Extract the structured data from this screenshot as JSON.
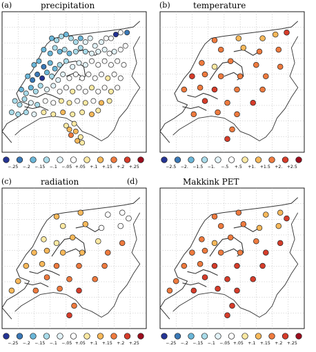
{
  "panels": [
    {
      "tag": "(a)",
      "title": "precipitation",
      "legend_ticks": [
        "−.25",
        "−.2",
        "−.15",
        "−.1",
        "−.05",
        "+.05",
        "+.1",
        "+.15",
        "+.2",
        "+.25"
      ]
    },
    {
      "tag": "(b)",
      "title": "temperature",
      "legend_ticks": [
        "−2.5",
        "−2.",
        "−1.5",
        "−1.",
        "−.5",
        "+.5",
        "+1.",
        "+1.5",
        "+2.",
        "+2.5"
      ]
    },
    {
      "tag": "(c)",
      "title": "radiation",
      "legend_ticks": [
        "−.25",
        "−.2",
        "−.15",
        "−.1",
        "−.05",
        "+.05",
        "+.1",
        "+.15",
        "+.2",
        "+.25"
      ]
    },
    {
      "tag": "(d)",
      "title": "Makkink PET",
      "legend_ticks": [
        "−.25",
        "−.2",
        "−.15",
        "−.1",
        "−.05",
        "+.05",
        "+.1",
        "+.15",
        "+.2",
        "+.25"
      ]
    }
  ],
  "colors": {
    "scale": [
      "#253494",
      "#3a78b6",
      "#6ab6d8",
      "#a9dbe9",
      "#e2f2f7",
      "#ffffff",
      "#fce9a3",
      "#f7b85a",
      "#ee7a3e",
      "#d63c2a",
      "#9c0d1d"
    ],
    "grid": "#bdbdbd",
    "coast": "#333333"
  },
  "chart_data": [
    {
      "type": "scatter",
      "title": "precipitation",
      "legend": "bottom",
      "grid": true,
      "category_scale": [
        "−.25",
        "−.2",
        "−.15",
        "−.1",
        "−.05",
        "+.05",
        "+.1",
        "+.15",
        "+.2",
        "+.25"
      ],
      "stations": [
        [
          3.55,
          53.3,
          2
        ],
        [
          3.7,
          53.25,
          3
        ],
        [
          3.85,
          53.35,
          3
        ],
        [
          4.0,
          53.4,
          2
        ],
        [
          4.15,
          53.3,
          3
        ],
        [
          4.3,
          53.2,
          3
        ],
        [
          4.45,
          53.3,
          2
        ],
        [
          4.6,
          53.2,
          4
        ],
        [
          4.75,
          53.3,
          4
        ],
        [
          4.9,
          53.1,
          4
        ],
        [
          5.1,
          53.2,
          4
        ],
        [
          5.25,
          53.3,
          5
        ],
        [
          5.4,
          53.3,
          5
        ],
        [
          5.55,
          53.4,
          0
        ],
        [
          5.7,
          53.45,
          5
        ],
        [
          5.9,
          53.45,
          1
        ],
        [
          3.3,
          53.0,
          2
        ],
        [
          3.5,
          52.9,
          2
        ],
        [
          3.65,
          53.05,
          3
        ],
        [
          3.8,
          52.95,
          2
        ],
        [
          3.95,
          53.0,
          3
        ],
        [
          4.1,
          52.9,
          2
        ],
        [
          4.3,
          52.95,
          3
        ],
        [
          4.45,
          53.05,
          3
        ],
        [
          4.6,
          52.95,
          3
        ],
        [
          4.8,
          52.9,
          4
        ],
        [
          5.0,
          52.95,
          4
        ],
        [
          5.2,
          53.0,
          4
        ],
        [
          5.35,
          52.9,
          5
        ],
        [
          5.5,
          52.95,
          4
        ],
        [
          5.7,
          53.0,
          5
        ],
        [
          5.85,
          53.1,
          5
        ],
        [
          3.0,
          52.6,
          2
        ],
        [
          3.15,
          52.7,
          2
        ],
        [
          3.3,
          52.55,
          1
        ],
        [
          3.5,
          52.65,
          2
        ],
        [
          3.65,
          52.5,
          2
        ],
        [
          3.8,
          52.6,
          3
        ],
        [
          4.0,
          52.7,
          3
        ],
        [
          4.2,
          52.55,
          4
        ],
        [
          4.4,
          52.65,
          4
        ],
        [
          4.6,
          52.6,
          4
        ],
        [
          4.8,
          52.7,
          5
        ],
        [
          5.0,
          52.6,
          5
        ],
        [
          5.2,
          52.7,
          5
        ],
        [
          5.4,
          52.6,
          5
        ],
        [
          5.6,
          52.7,
          5
        ],
        [
          5.8,
          52.6,
          5
        ],
        [
          2.8,
          52.3,
          2
        ],
        [
          2.95,
          52.2,
          1
        ],
        [
          3.1,
          52.35,
          1
        ],
        [
          3.25,
          52.25,
          0
        ],
        [
          3.4,
          52.4,
          2
        ],
        [
          3.55,
          52.3,
          3
        ],
        [
          3.75,
          52.2,
          4
        ],
        [
          3.9,
          52.35,
          4
        ],
        [
          4.1,
          52.25,
          5
        ],
        [
          4.3,
          52.35,
          5
        ],
        [
          4.5,
          52.25,
          5
        ],
        [
          4.7,
          52.35,
          5
        ],
        [
          4.9,
          52.25,
          5
        ],
        [
          5.1,
          52.35,
          5
        ],
        [
          5.3,
          52.25,
          6
        ],
        [
          5.5,
          52.35,
          5
        ],
        [
          5.7,
          52.25,
          5
        ],
        [
          2.6,
          51.95,
          2
        ],
        [
          2.75,
          51.85,
          3
        ],
        [
          2.9,
          52.0,
          2
        ],
        [
          3.05,
          51.9,
          3
        ],
        [
          3.2,
          52.05,
          3
        ],
        [
          3.4,
          51.95,
          4
        ],
        [
          3.6,
          52.05,
          4
        ],
        [
          3.8,
          51.9,
          5
        ],
        [
          4.0,
          52.0,
          5
        ],
        [
          4.2,
          51.9,
          6
        ],
        [
          4.4,
          52.0,
          5
        ],
        [
          4.6,
          51.9,
          5
        ],
        [
          4.8,
          52.0,
          6
        ],
        [
          5.0,
          51.9,
          5
        ],
        [
          5.2,
          52.0,
          5
        ],
        [
          5.4,
          51.9,
          6
        ],
        [
          5.6,
          52.0,
          5
        ],
        [
          2.4,
          51.65,
          3
        ],
        [
          2.55,
          51.55,
          3
        ],
        [
          2.7,
          51.7,
          3
        ],
        [
          2.9,
          51.6,
          4
        ],
        [
          3.1,
          51.55,
          3
        ],
        [
          3.35,
          51.65,
          5
        ],
        [
          3.6,
          51.6,
          5
        ],
        [
          3.85,
          51.65,
          6
        ],
        [
          4.1,
          51.6,
          6
        ],
        [
          4.35,
          51.65,
          5
        ],
        [
          4.6,
          51.6,
          6
        ],
        [
          4.85,
          51.65,
          5
        ],
        [
          5.1,
          51.6,
          7
        ],
        [
          5.35,
          51.65,
          6
        ],
        [
          2.3,
          51.35,
          3
        ],
        [
          2.5,
          51.3,
          3
        ],
        [
          2.75,
          51.35,
          3
        ],
        [
          3.0,
          51.3,
          4
        ],
        [
          3.3,
          51.35,
          6
        ],
        [
          3.6,
          51.3,
          6
        ],
        [
          3.9,
          51.35,
          7
        ],
        [
          4.2,
          51.3,
          6
        ],
        [
          4.5,
          51.35,
          6
        ],
        [
          4.8,
          51.3,
          7
        ],
        [
          5.0,
          51.4,
          6
        ],
        [
          4.0,
          51.0,
          6
        ],
        [
          4.1,
          50.9,
          7
        ],
        [
          4.25,
          51.05,
          6
        ],
        [
          4.15,
          50.75,
          8
        ],
        [
          4.3,
          50.85,
          7
        ],
        [
          4.45,
          50.7,
          6
        ],
        [
          4.35,
          50.6,
          7
        ],
        [
          4.5,
          50.55,
          6
        ]
      ]
    },
    {
      "type": "scatter",
      "title": "temperature",
      "legend": "bottom",
      "grid": true,
      "category_scale": [
        "−2.5",
        "−2.",
        "−1.5",
        "−1.",
        "−.5",
        "+.5",
        "+1.",
        "+1.5",
        "+2.",
        "+2.5"
      ],
      "stations": [
        [
          3.7,
          53.25,
          8
        ],
        [
          4.45,
          53.3,
          7
        ],
        [
          5.2,
          53.3,
          7
        ],
        [
          5.6,
          53.4,
          7
        ],
        [
          5.95,
          53.45,
          9
        ],
        [
          3.9,
          53.0,
          8
        ],
        [
          4.6,
          53.05,
          7
        ],
        [
          5.1,
          52.95,
          8
        ],
        [
          5.7,
          53.0,
          8
        ],
        [
          3.3,
          52.65,
          8
        ],
        [
          3.7,
          52.55,
          6
        ],
        [
          4.2,
          52.7,
          8
        ],
        [
          5.0,
          52.6,
          8
        ],
        [
          5.75,
          52.55,
          8
        ],
        [
          3.0,
          52.3,
          9
        ],
        [
          3.4,
          52.35,
          8
        ],
        [
          3.9,
          52.3,
          8
        ],
        [
          4.5,
          52.3,
          8
        ],
        [
          5.3,
          52.3,
          8
        ],
        [
          2.75,
          51.95,
          8
        ],
        [
          3.25,
          52.0,
          8
        ],
        [
          3.7,
          51.95,
          9
        ],
        [
          4.4,
          51.95,
          8
        ],
        [
          5.2,
          51.95,
          8
        ],
        [
          3.4,
          51.65,
          9
        ],
        [
          4.1,
          51.6,
          8
        ],
        [
          4.9,
          51.6,
          9
        ],
        [
          3.05,
          51.3,
          8
        ],
        [
          3.8,
          51.35,
          8
        ],
        [
          4.4,
          51.3,
          8
        ],
        [
          4.25,
          50.9,
          8
        ],
        [
          4.1,
          50.65,
          9
        ]
      ]
    },
    {
      "type": "scatter",
      "title": "radiation",
      "legend": "bottom",
      "grid": true,
      "category_scale": [
        "−.25",
        "−.2",
        "−.15",
        "−.1",
        "−.05",
        "+.05",
        "+.1",
        "+.15",
        "+.2",
        "+.25"
      ],
      "stations": [
        [
          3.7,
          53.25,
          7
        ],
        [
          4.45,
          53.35,
          7
        ],
        [
          5.3,
          53.3,
          5
        ],
        [
          5.75,
          53.35,
          5
        ],
        [
          5.95,
          53.2,
          5
        ],
        [
          3.9,
          53.0,
          6
        ],
        [
          4.6,
          53.05,
          7
        ],
        [
          5.1,
          52.95,
          5
        ],
        [
          5.7,
          53.0,
          5
        ],
        [
          3.3,
          52.65,
          6
        ],
        [
          3.7,
          52.55,
          6
        ],
        [
          4.2,
          52.7,
          7
        ],
        [
          5.0,
          52.6,
          6
        ],
        [
          5.75,
          52.55,
          8
        ],
        [
          3.0,
          52.3,
          7
        ],
        [
          3.4,
          52.35,
          7
        ],
        [
          3.9,
          52.3,
          7
        ],
        [
          4.5,
          52.3,
          7
        ],
        [
          5.3,
          52.3,
          8
        ],
        [
          2.75,
          51.95,
          7
        ],
        [
          3.25,
          52.0,
          7
        ],
        [
          3.7,
          51.95,
          8
        ],
        [
          4.4,
          51.95,
          8
        ],
        [
          5.2,
          51.95,
          8
        ],
        [
          2.5,
          51.55,
          7
        ],
        [
          3.4,
          51.65,
          8
        ],
        [
          4.1,
          51.6,
          8
        ],
        [
          4.9,
          51.6,
          8
        ],
        [
          2.3,
          51.3,
          7
        ],
        [
          3.05,
          51.3,
          8
        ],
        [
          3.8,
          51.35,
          8
        ],
        [
          4.4,
          51.3,
          9
        ],
        [
          4.25,
          50.9,
          8
        ],
        [
          4.1,
          50.65,
          9
        ]
      ]
    },
    {
      "type": "scatter",
      "title": "Makkink PET",
      "legend": "bottom",
      "grid": true,
      "category_scale": [
        "−.25",
        "−.2",
        "−.15",
        "−.1",
        "−.05",
        "+.05",
        "+.1",
        "+.15",
        "+.2",
        "+.25"
      ],
      "stations": [
        [
          3.7,
          53.25,
          8
        ],
        [
          4.45,
          53.35,
          8
        ],
        [
          5.3,
          53.3,
          7
        ],
        [
          5.75,
          53.35,
          7
        ],
        [
          5.95,
          53.2,
          9
        ],
        [
          3.9,
          53.0,
          8
        ],
        [
          4.6,
          53.05,
          8
        ],
        [
          5.1,
          52.95,
          7
        ],
        [
          5.7,
          53.0,
          7
        ],
        [
          3.3,
          52.65,
          8
        ],
        [
          3.7,
          52.55,
          7
        ],
        [
          4.2,
          52.7,
          8
        ],
        [
          5.0,
          52.6,
          8
        ],
        [
          5.75,
          52.55,
          9
        ],
        [
          3.0,
          52.3,
          8
        ],
        [
          3.4,
          52.35,
          8
        ],
        [
          3.9,
          52.3,
          8
        ],
        [
          4.5,
          52.3,
          8
        ],
        [
          5.3,
          52.3,
          9
        ],
        [
          2.75,
          51.95,
          8
        ],
        [
          3.25,
          52.0,
          8
        ],
        [
          3.7,
          51.95,
          9
        ],
        [
          4.4,
          51.95,
          9
        ],
        [
          5.2,
          51.95,
          9
        ],
        [
          2.5,
          51.55,
          8
        ],
        [
          3.4,
          51.65,
          9
        ],
        [
          4.1,
          51.6,
          9
        ],
        [
          4.9,
          51.6,
          9
        ],
        [
          2.3,
          51.3,
          8
        ],
        [
          3.05,
          51.3,
          9
        ],
        [
          3.8,
          51.35,
          9
        ],
        [
          4.4,
          51.3,
          9
        ],
        [
          4.25,
          50.9,
          9
        ],
        [
          4.1,
          50.65,
          9
        ]
      ]
    }
  ]
}
